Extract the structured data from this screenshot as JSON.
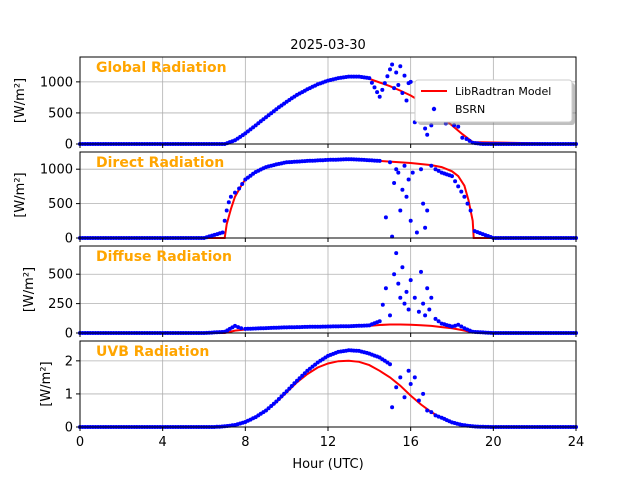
{
  "figure": {
    "title": "2025-03-30",
    "xlabel": "Hour (UTC)"
  },
  "legend": {
    "model": "LibRadtran Model",
    "obs": "BSRN",
    "placement": "upper-right of first panel"
  },
  "colors": {
    "model": "#ff0000",
    "obs": "#0000ff",
    "label": "#FFA500",
    "grid": "#b0b0b0"
  },
  "chart_data": [
    {
      "type": "line",
      "label": "Global Radiation",
      "ylabel": "[W/m²]",
      "xlim": [
        0,
        24
      ],
      "xticks": [
        0,
        4,
        8,
        12,
        16,
        20,
        24
      ],
      "ylim": [
        0,
        1400
      ],
      "yticks": [
        0,
        500,
        1000
      ],
      "grid": true,
      "series": [
        {
          "name": "LibRadtran Model",
          "kind": "line",
          "x": [
            0,
            7.0,
            7.5,
            8,
            8.5,
            9,
            9.5,
            10,
            10.5,
            11,
            11.5,
            12,
            12.5,
            13,
            13.5,
            14,
            14.5,
            15,
            15.5,
            16,
            16.5,
            17,
            17.5,
            18,
            18.5,
            19,
            24
          ],
          "y": [
            0,
            0,
            60,
            170,
            300,
            430,
            560,
            680,
            790,
            880,
            960,
            1020,
            1060,
            1080,
            1075,
            1050,
            990,
            930,
            860,
            780,
            680,
            560,
            430,
            300,
            160,
            30,
            0
          ]
        },
        {
          "name": "BSRN",
          "kind": "scatter",
          "x": [
            0,
            2,
            4,
            6,
            7.0,
            7.5,
            8,
            8.5,
            9,
            9.5,
            10,
            10.5,
            11,
            11.5,
            12,
            12.5,
            13,
            13.5,
            14,
            14.5,
            15.0,
            15.1,
            15.2,
            15.3,
            15.4,
            15.5,
            15.6,
            15.7,
            15.8,
            15.9,
            16.0,
            16.2,
            16.4,
            16.5,
            16.6,
            16.7,
            16.8,
            16.9,
            17.0,
            17.1,
            17.3,
            17.5,
            17.7,
            17.9,
            18.1,
            18.3,
            18.5,
            18.7,
            19.0,
            19.5,
            20,
            22,
            24
          ],
          "y": [
            0,
            0,
            0,
            0,
            0,
            60,
            170,
            300,
            430,
            560,
            680,
            790,
            880,
            960,
            1020,
            1060,
            1085,
            1085,
            1060,
            760,
            1200,
            1280,
            900,
            1150,
            950,
            1250,
            820,
            1100,
            700,
            980,
            1000,
            350,
            550,
            800,
            400,
            250,
            150,
            500,
            300,
            550,
            620,
            520,
            330,
            480,
            300,
            280,
            100,
            80,
            20,
            0,
            0,
            0,
            0
          ]
        }
      ]
    },
    {
      "type": "line",
      "label": "Direct Radiation",
      "ylabel": "[W/m²]",
      "xlim": [
        0,
        24
      ],
      "xticks": [
        0,
        4,
        8,
        12,
        16,
        20,
        24
      ],
      "ylim": [
        0,
        1250
      ],
      "yticks": [
        0,
        500,
        1000
      ],
      "grid": true,
      "series": [
        {
          "name": "LibRadtran Model",
          "kind": "line",
          "x": [
            0,
            7.0,
            7.1,
            7.3,
            7.5,
            7.8,
            8,
            8.5,
            9,
            9.5,
            10,
            11,
            12,
            13,
            14,
            15,
            16,
            17,
            17.5,
            18,
            18.3,
            18.6,
            18.8,
            19.0,
            19.05,
            24
          ],
          "y": [
            0,
            0,
            200,
            420,
            600,
            760,
            850,
            960,
            1030,
            1070,
            1100,
            1120,
            1135,
            1140,
            1130,
            1110,
            1090,
            1060,
            1030,
            970,
            900,
            760,
            550,
            250,
            0,
            0
          ]
        },
        {
          "name": "BSRN",
          "kind": "scatter",
          "x": [
            0,
            3,
            6,
            6.9,
            7.0,
            7.1,
            7.2,
            7.3,
            7.5,
            7.7,
            8,
            8.5,
            9,
            9.5,
            10,
            11,
            12,
            13,
            13.5,
            14,
            14.5,
            14.8,
            15.0,
            15.1,
            15.2,
            15.3,
            15.4,
            15.5,
            15.6,
            15.7,
            15.8,
            15.9,
            16.0,
            16.1,
            16.3,
            16.5,
            16.6,
            16.7,
            16.8,
            17.0,
            17.2,
            17.5,
            18,
            18.3,
            18.6,
            18.9,
            19.1,
            20,
            24
          ],
          "y": [
            0,
            0,
            0,
            80,
            250,
            400,
            520,
            600,
            660,
            720,
            850,
            960,
            1030,
            1070,
            1100,
            1120,
            1135,
            1145,
            1140,
            1130,
            1120,
            300,
            1100,
            20,
            800,
            1000,
            950,
            400,
            700,
            1050,
            600,
            850,
            250,
            950,
            80,
            1000,
            500,
            150,
            400,
            1050,
            1000,
            950,
            900,
            750,
            600,
            400,
            100,
            0,
            0
          ]
        }
      ]
    },
    {
      "type": "line",
      "label": "Diffuse Radiation",
      "ylabel": "[W/m²]",
      "xlim": [
        0,
        24
      ],
      "xticks": [
        0,
        4,
        8,
        12,
        16,
        20,
        24
      ],
      "ylim": [
        0,
        740
      ],
      "yticks": [
        0,
        250,
        500
      ],
      "grid": true,
      "series": [
        {
          "name": "LibRadtran Model",
          "kind": "line",
          "x": [
            0,
            7.0,
            7.5,
            8,
            9,
            10,
            11,
            12,
            13,
            14,
            14.5,
            15,
            15.5,
            16,
            16.5,
            17,
            17.5,
            18,
            18.5,
            19,
            24
          ],
          "y": [
            0,
            0,
            20,
            30,
            40,
            45,
            50,
            52,
            55,
            60,
            68,
            72,
            72,
            70,
            66,
            60,
            50,
            40,
            25,
            5,
            0
          ]
        },
        {
          "name": "BSRN",
          "kind": "scatter",
          "x": [
            0,
            3,
            6,
            7.0,
            7.5,
            7.8,
            8,
            9,
            10,
            11,
            12,
            13,
            14,
            14.5,
            14.8,
            15.0,
            15.2,
            15.3,
            15.4,
            15.5,
            15.6,
            15.7,
            15.8,
            15.9,
            16.0,
            16.2,
            16.4,
            16.5,
            16.6,
            16.7,
            16.8,
            16.9,
            17.0,
            17.2,
            17.5,
            18,
            18.3,
            18.6,
            19,
            20,
            24
          ],
          "y": [
            0,
            0,
            0,
            10,
            60,
            40,
            35,
            42,
            48,
            52,
            55,
            58,
            65,
            100,
            380,
            150,
            500,
            680,
            420,
            300,
            560,
            250,
            350,
            200,
            450,
            300,
            180,
            520,
            250,
            150,
            380,
            200,
            300,
            120,
            80,
            55,
            70,
            40,
            10,
            0,
            0
          ]
        }
      ]
    },
    {
      "type": "line",
      "label": "UVB Radiation",
      "ylabel": "[W/m²]",
      "xlim": [
        0,
        24
      ],
      "xticks": [
        0,
        4,
        8,
        12,
        16,
        20,
        24
      ],
      "ylim": [
        0,
        2.6
      ],
      "yticks": [
        0,
        1,
        2
      ],
      "grid": true,
      "series": [
        {
          "name": "LibRadtran Model",
          "kind": "line",
          "x": [
            0,
            6.5,
            7,
            7.5,
            8,
            8.5,
            9,
            9.5,
            10,
            10.5,
            11,
            11.5,
            12,
            12.5,
            13,
            13.5,
            14,
            14.5,
            15,
            15.5,
            16,
            16.5,
            17,
            17.5,
            18,
            18.5,
            19,
            19.5,
            20,
            24
          ],
          "y": [
            0,
            0,
            0.02,
            0.06,
            0.15,
            0.3,
            0.5,
            0.75,
            1.05,
            1.35,
            1.6,
            1.8,
            1.92,
            1.99,
            2.0,
            1.97,
            1.87,
            1.7,
            1.5,
            1.25,
            0.95,
            0.68,
            0.45,
            0.27,
            0.14,
            0.06,
            0.02,
            0.005,
            0,
            0
          ]
        },
        {
          "name": "BSRN",
          "kind": "scatter",
          "x": [
            0,
            3,
            6,
            6.5,
            7,
            7.5,
            8,
            8.5,
            9,
            9.5,
            10,
            10.5,
            11,
            11.5,
            12,
            12.5,
            13,
            13.5,
            14,
            14.5,
            15,
            15.1,
            15.3,
            15.5,
            15.7,
            15.9,
            16.0,
            16.2,
            16.4,
            16.6,
            16.8,
            17.0,
            17.2,
            17.5,
            18,
            18.5,
            19,
            19.5,
            20,
            22,
            24
          ],
          "y": [
            0,
            0,
            0,
            0,
            0.02,
            0.06,
            0.15,
            0.3,
            0.5,
            0.77,
            1.08,
            1.4,
            1.7,
            1.95,
            2.15,
            2.27,
            2.32,
            2.3,
            2.22,
            2.1,
            1.9,
            0.6,
            1.2,
            1.5,
            0.9,
            1.7,
            1.3,
            1.5,
            0.8,
            1.0,
            0.5,
            0.45,
            0.35,
            0.28,
            0.14,
            0.06,
            0.02,
            0.005,
            0,
            0,
            0
          ]
        }
      ]
    }
  ]
}
